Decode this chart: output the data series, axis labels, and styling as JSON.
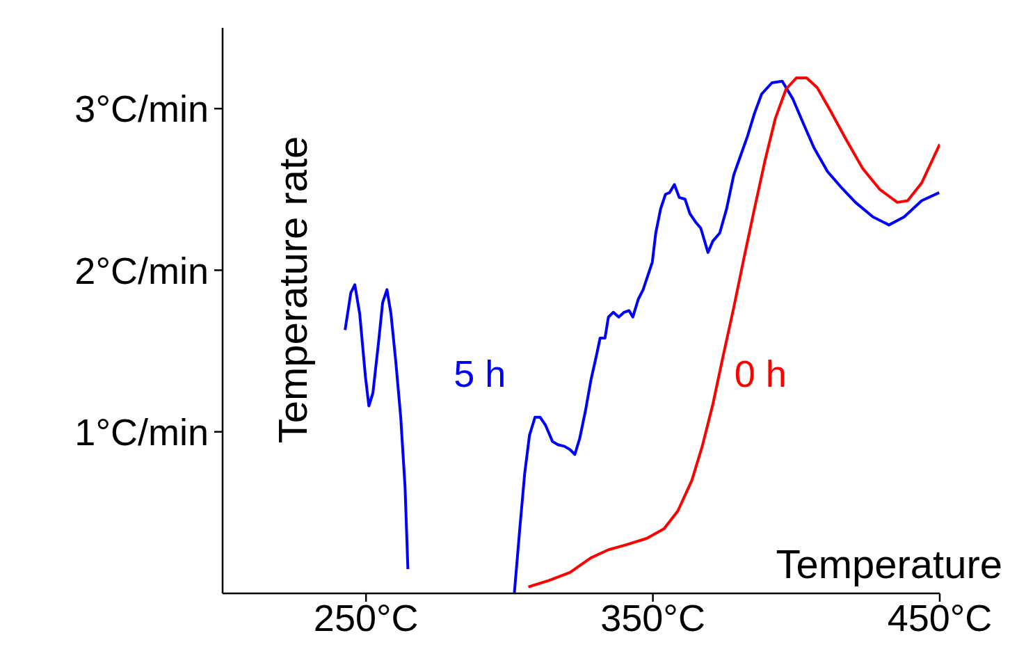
{
  "chart_data": {
    "type": "line",
    "xlabel": "Temperature",
    "ylabel": "Temperature rate",
    "xlim": [
      200,
      450
    ],
    "ylim": [
      0,
      3.5
    ],
    "xticks": [
      {
        "value": 250,
        "label": "250°C"
      },
      {
        "value": 350,
        "label": "350°C"
      },
      {
        "value": 450,
        "label": "450°C"
      }
    ],
    "yticks": [
      {
        "value": 1,
        "label": "1°C/min"
      },
      {
        "value": 2,
        "label": "2°C/min"
      },
      {
        "value": 3,
        "label": "3°C/min"
      }
    ],
    "grid": false,
    "marker": "none",
    "line_style": "solid",
    "series": [
      {
        "name": "5 h",
        "color": "#0000ff",
        "x": [
          242.7,
          244.7,
          246.1,
          247.8,
          249.8,
          251.0,
          252.4,
          254.4,
          255.8,
          257.3,
          258.7,
          260.4,
          262.1,
          263.6,
          264.6,
          280,
          301.7,
          303.6,
          305.3,
          307.0,
          308.9,
          310.7,
          312.6,
          315.0,
          316.9,
          319.2,
          321.1,
          322.8,
          324.5,
          326.5,
          328.4,
          330.3,
          331.6,
          333.3,
          334.5,
          336.2,
          338.1,
          340.0,
          341.7,
          343.0,
          344.9,
          346.6,
          348.3,
          349.8,
          351.0,
          352.7,
          354.4,
          355.8,
          357.5,
          359.2,
          361.2,
          362.9,
          364.8,
          366.7,
          369.2,
          370.9,
          373.3,
          375.7,
          378.2,
          380.6,
          383.0,
          385.4,
          387.9,
          391.5,
          395.1,
          398.8,
          402.4,
          406.1,
          410.9,
          415.8,
          420.6,
          426.7,
          432.3,
          437.6,
          443.7,
          449.8
        ],
        "values": [
          1.63,
          1.86,
          1.91,
          1.73,
          1.34,
          1.16,
          1.24,
          1.56,
          1.8,
          1.88,
          1.73,
          1.43,
          1.09,
          0.66,
          0.15,
          null,
          0,
          0.4,
          0.74,
          0.98,
          1.09,
          1.09,
          1.04,
          0.94,
          0.92,
          0.91,
          0.89,
          0.86,
          0.96,
          1.13,
          1.32,
          1.47,
          1.58,
          1.58,
          1.71,
          1.74,
          1.71,
          1.74,
          1.75,
          1.71,
          1.82,
          1.88,
          1.97,
          2.05,
          2.23,
          2.38,
          2.47,
          2.48,
          2.53,
          2.45,
          2.44,
          2.35,
          2.3,
          2.26,
          2.11,
          2.18,
          2.23,
          2.38,
          2.59,
          2.71,
          2.83,
          2.97,
          3.09,
          3.16,
          3.17,
          3.06,
          2.91,
          2.76,
          2.61,
          2.51,
          2.42,
          2.33,
          2.28,
          2.33,
          2.43,
          2.48
        ]
      },
      {
        "name": "0 h",
        "color": "#ff0000",
        "x": [
          306.6,
          313.8,
          321.1,
          328.4,
          334.5,
          340.5,
          347.8,
          353.9,
          358.7,
          363.6,
          367.2,
          370.9,
          374.5,
          378.2,
          381.8,
          385.4,
          389.1,
          392.7,
          396.4,
          400.0,
          403.6,
          407.3,
          412.1,
          417.0,
          423.1,
          429.1,
          435.2,
          438.8,
          443.7,
          450
        ],
        "values": [
          0.04,
          0.08,
          0.13,
          0.22,
          0.27,
          0.3,
          0.34,
          0.4,
          0.51,
          0.7,
          0.91,
          1.17,
          1.47,
          1.77,
          2.08,
          2.38,
          2.68,
          2.94,
          3.12,
          3.19,
          3.19,
          3.13,
          2.98,
          2.82,
          2.63,
          2.5,
          2.42,
          2.43,
          2.54,
          2.78
        ]
      }
    ]
  }
}
